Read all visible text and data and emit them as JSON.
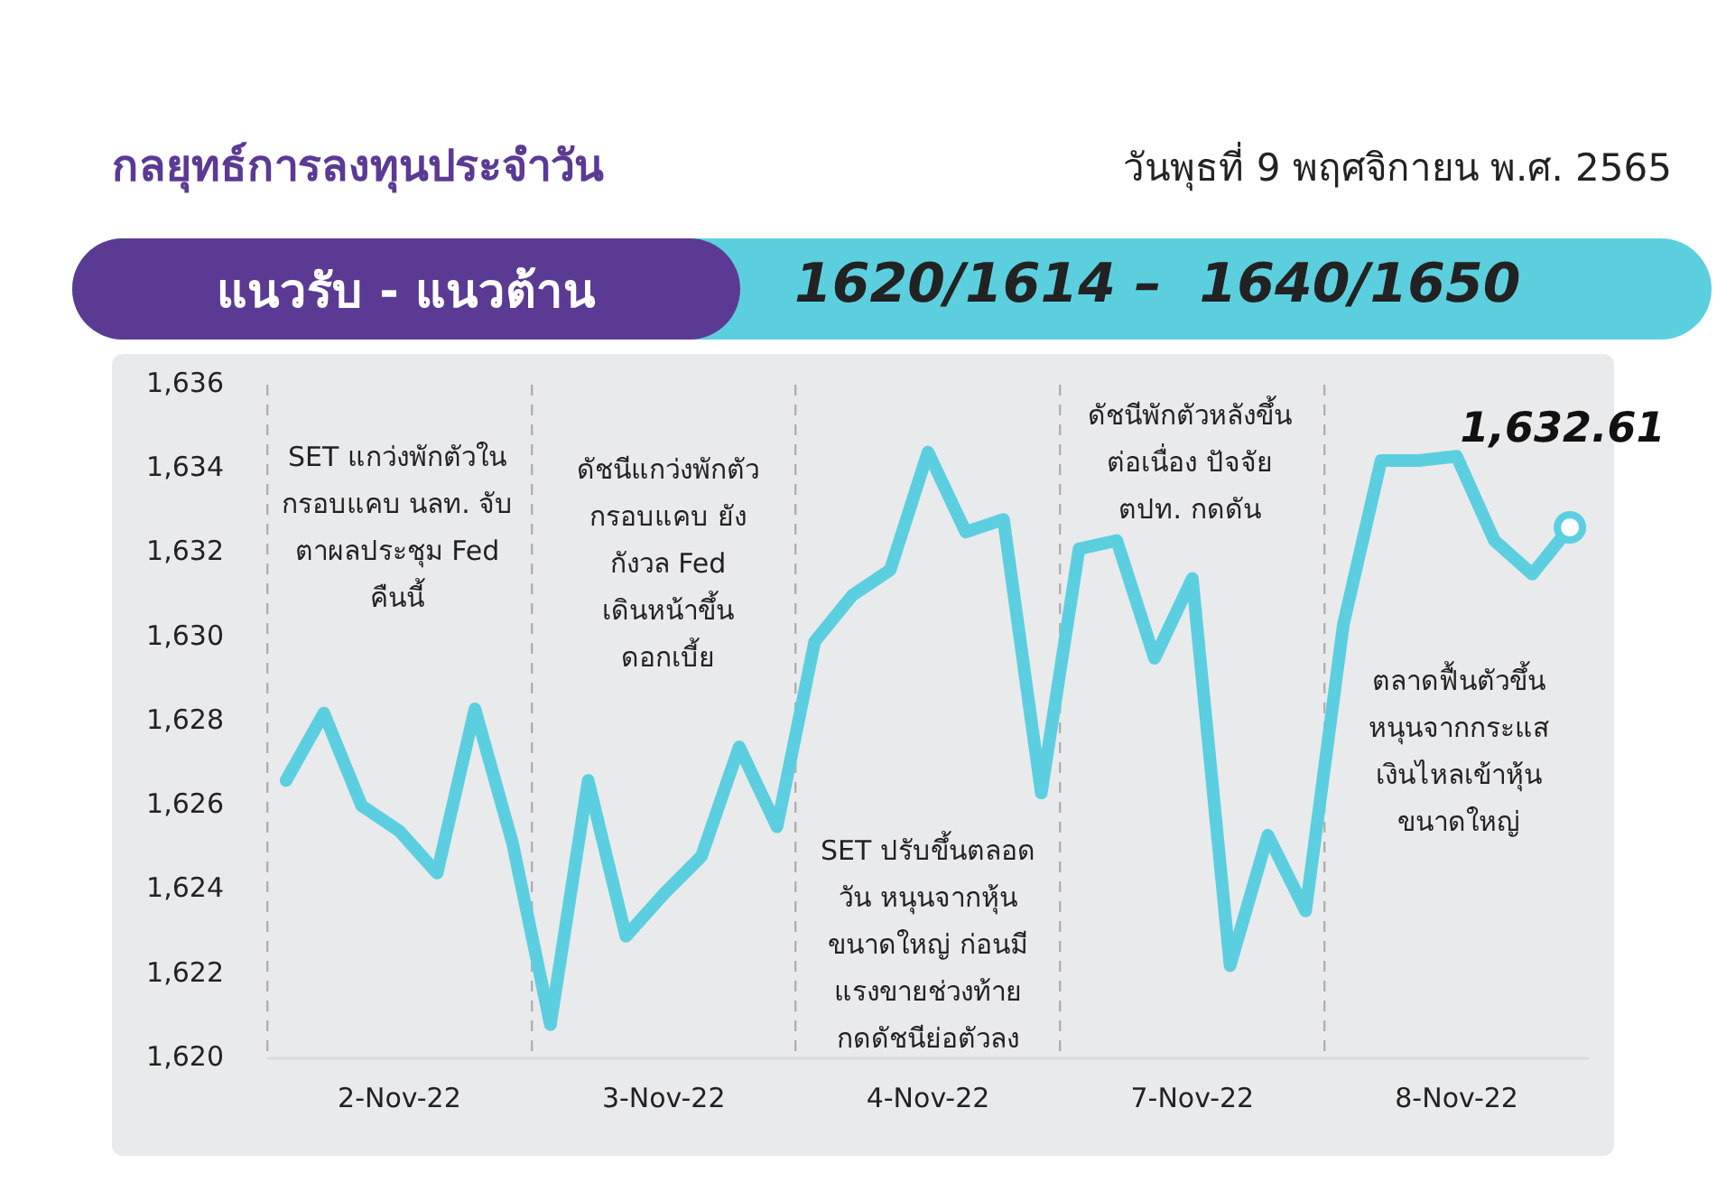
{
  "chart_data": {
    "type": "line",
    "title": "กลยุทธ์การลงทุนประจำวัน",
    "subtitle": "วันพุธที่ 9 พฤศจิกายน พ.ศ. 2565",
    "annotations": [
      "แนวรับ - แนวต้าน",
      "1620/1614 –  1640/1650",
      "SET แกว่งพักตัวใน\nกรอบแคบ นลท. จับ\nตาผลประชุม Fed\nคืนนี้",
      "ดัชนีแกว่งพักตัว\nกรอบแคบ ยัง\nกังวล Fed\nเดินหน้าขึ้น\nดอกเบี้ย",
      "SET ปรับขึ้นตลอด\nวัน หนุนจากหุ้น\nขนาดใหญ่ ก่อนมี\nแรงขายช่วงท้าย\nกดดัชนีย่อตัวลง",
      "ดัชนีพักตัวหลังขึ้น\nต่อเนื่อง ปัจจัย\nตปท. กดดัน",
      "ตลาดฟื้นตัวขึ้น\nหนุนจากกระแส\nเงินไหลเข้าหุ้น\nขนาดใหญ่",
      {
        "text": "1,632.61",
        "y": 1632.61
      }
    ],
    "categories": [
      null,
      null,
      null,
      "2-Nov-22",
      null,
      null,
      null,
      null,
      null,
      null,
      "3-Nov-22",
      null,
      null,
      null,
      null,
      null,
      null,
      "4-Nov-22",
      null,
      null,
      null,
      null,
      null,
      null,
      "7-Nov-22",
      null,
      null,
      null,
      null,
      null,
      null,
      "8-Nov-22",
      null,
      null,
      null
    ],
    "series": [
      {
        "color": "#5bcfdf",
        "values": [
          1626.6,
          1628.2,
          1626.0,
          1625.4,
          1624.4,
          1628.3,
          1625.1,
          1620.8,
          1626.6,
          1622.9,
          1623.9,
          1624.8,
          1627.4,
          1625.5,
          1629.9,
          1631.0,
          1631.6,
          1634.4,
          1632.5,
          1632.8,
          1626.3,
          1632.1,
          1632.3,
          1629.5,
          1631.4,
          1622.2,
          1625.3,
          1623.5,
          1630.3,
          1634.2,
          1634.2,
          1634.3,
          1632.3,
          1631.5,
          1632.61
        ]
      }
    ],
    "ylim": [
      1620,
      1636
    ],
    "yticks": [
      {
        "value": 1620,
        "label": "1,620"
      },
      {
        "value": 1622,
        "label": "1,622"
      },
      {
        "value": 1624,
        "label": "1,624"
      },
      {
        "value": 1626,
        "label": "1,626"
      },
      {
        "value": 1628,
        "label": "1,628"
      },
      {
        "value": 1630,
        "label": "1,630"
      },
      {
        "value": 1632,
        "label": "1,632"
      },
      {
        "value": 1634,
        "label": "1,634"
      },
      {
        "value": 1636,
        "label": "1,636"
      }
    ],
    "grid": "x",
    "legend": false,
    "marker": "none",
    "line_style": "solid"
  }
}
